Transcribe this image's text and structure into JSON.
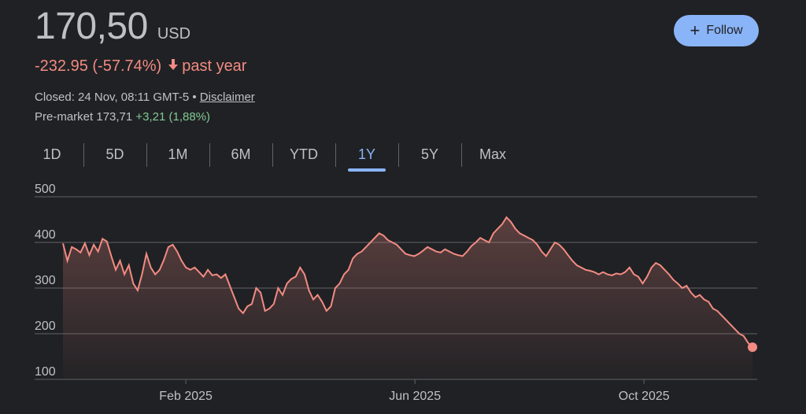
{
  "quote": {
    "price": "170,50",
    "currency": "USD",
    "change_text": "-232.95 (-57.74%)",
    "period_text": "past year",
    "closed_text": "Closed: 24 Nov, 08:11 GMT-5 •",
    "disclaimer": "Disclaimer",
    "premarket_label": "Pre-market 173,71",
    "premarket_change": "+3,21 (1,88%)"
  },
  "follow_button": {
    "label": "Follow"
  },
  "tabs": [
    {
      "label": "1D"
    },
    {
      "label": "5D"
    },
    {
      "label": "1M"
    },
    {
      "label": "6M"
    },
    {
      "label": "YTD"
    },
    {
      "label": "1Y",
      "active": true
    },
    {
      "label": "5Y"
    },
    {
      "label": "Max"
    }
  ],
  "colors": {
    "line": "#f28b82",
    "accent": "#8ab4f8",
    "positive": "#81c995",
    "background": "#202124"
  },
  "chart_data": {
    "type": "area",
    "y_ticks": [
      "500",
      "400",
      "300",
      "200",
      "100"
    ],
    "ylim": [
      100,
      500
    ],
    "x_ticks": [
      "Feb 2025",
      "Jun 2025",
      "Oct 2025"
    ],
    "x_tick_positions": [
      0.177,
      0.507,
      0.837
    ],
    "grid": true,
    "series": [
      {
        "values": [
          398,
          360,
          390,
          385,
          378,
          398,
          372,
          395,
          380,
          408,
          402,
          370,
          340,
          360,
          330,
          350,
          310,
          295,
          330,
          375,
          345,
          330,
          340,
          362,
          390,
          395,
          380,
          360,
          345,
          340,
          345,
          335,
          325,
          340,
          328,
          330,
          322,
          330,
          305,
          280,
          255,
          245,
          260,
          265,
          300,
          290,
          250,
          255,
          265,
          300,
          285,
          310,
          320,
          325,
          345,
          330,
          295,
          275,
          285,
          270,
          250,
          260,
          300,
          310,
          330,
          340,
          365,
          375,
          380,
          390,
          400,
          410,
          420,
          415,
          405,
          400,
          395,
          385,
          375,
          372,
          370,
          375,
          382,
          390,
          385,
          380,
          378,
          385,
          380,
          375,
          372,
          370,
          380,
          392,
          400,
          410,
          405,
          400,
          420,
          430,
          440,
          455,
          445,
          430,
          420,
          415,
          410,
          405,
          395,
          380,
          370,
          385,
          400,
          395,
          385,
          372,
          360,
          350,
          345,
          340,
          338,
          335,
          330,
          335,
          330,
          328,
          332,
          330,
          335,
          345,
          330,
          325,
          310,
          325,
          345,
          355,
          350,
          340,
          330,
          318,
          310,
          300,
          305,
          290,
          280,
          285,
          275,
          270,
          255,
          250,
          240,
          230,
          220,
          210,
          200,
          195,
          180,
          170.5
        ]
      }
    ]
  }
}
